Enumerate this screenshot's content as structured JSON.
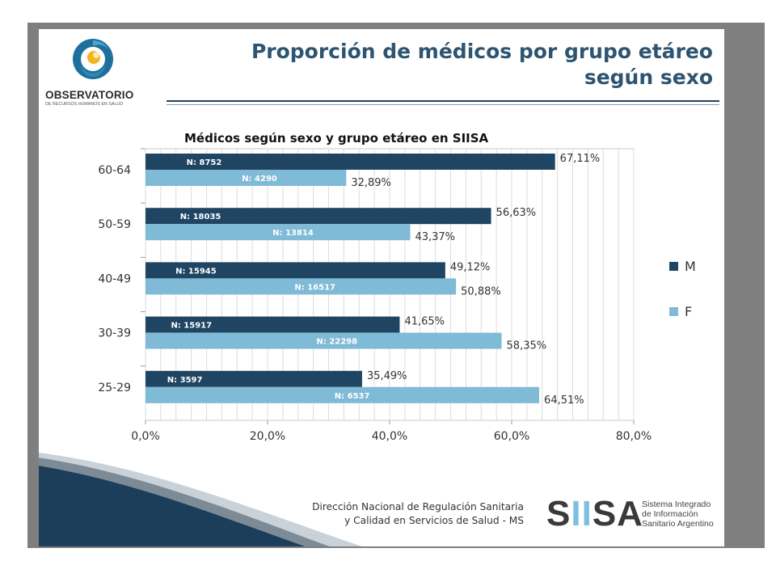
{
  "header": {
    "title_line1": "Proporción de médicos por grupo etáreo",
    "title_line2": "según sexo"
  },
  "logo": {
    "name": "OBSERVATORIO",
    "subtitle": "DE RECURSOS HUMANOS EN SALUD",
    "icon": "swirl-logo-icon"
  },
  "colors": {
    "M": "#1f4563",
    "F": "#7fbad6",
    "title": "#2d5471"
  },
  "chart_data": {
    "type": "bar",
    "orientation": "horizontal",
    "title": "Médicos según sexo y grupo etáreo en SIISA",
    "categories": [
      "60-64",
      "50-59",
      "40-49",
      "30-39",
      "25-29"
    ],
    "series": [
      {
        "name": "M",
        "values": [
          67.11,
          56.63,
          49.12,
          41.65,
          35.49
        ],
        "value_labels": [
          "67,11%",
          "56,63%",
          "49,12%",
          "41,65%",
          "35,49%"
        ],
        "count_labels": [
          "N: 8752",
          "N: 18035",
          "N: 15945",
          "N: 15917",
          "N: 3597"
        ]
      },
      {
        "name": "F",
        "values": [
          32.89,
          43.37,
          50.88,
          58.35,
          64.51
        ],
        "value_labels": [
          "32,89%",
          "43,37%",
          "50,88%",
          "58,35%",
          "64,51%"
        ],
        "count_labels": [
          "N: 4290",
          "N: 13814",
          "N:  16517",
          "N: 22298",
          "N: 6537"
        ]
      }
    ],
    "xlim": [
      0,
      80
    ],
    "xticks": [
      0,
      20,
      40,
      60,
      80
    ],
    "xtick_labels": [
      "0,0%",
      "20,0%",
      "40,0%",
      "60,0%",
      "80,0%"
    ],
    "grid": true,
    "legend_position": "right"
  },
  "footer": {
    "line1": "Dirección Nacional de Regulación Sanitaria",
    "line2": "y Calidad en Servicios de Salud - MS",
    "brand_s1": "S",
    "brand_ii": "II",
    "brand_s2": "SA",
    "brand_sub1": "Sistema Integrado",
    "brand_sub2": "de Información",
    "brand_sub3": "Sanitario Argentino"
  }
}
